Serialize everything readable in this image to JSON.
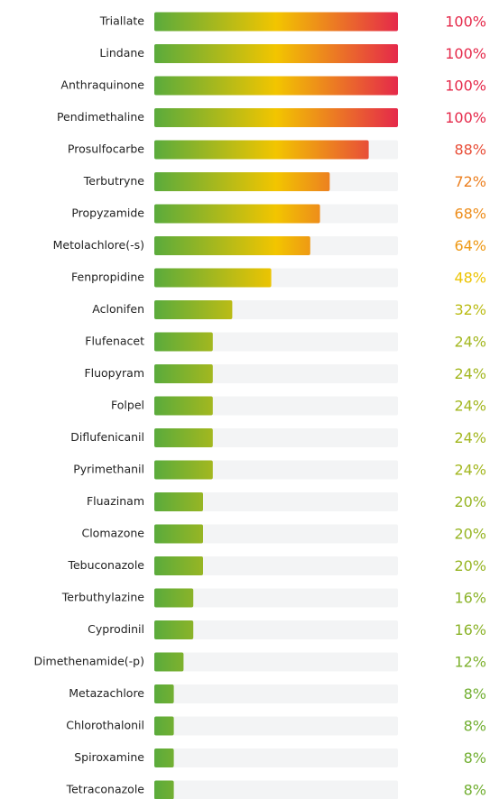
{
  "chart_data": {
    "type": "bar",
    "orientation": "horizontal",
    "categories": [
      "Triallate",
      "Lindane",
      "Anthraquinone",
      "Pendimethaline",
      "Prosulfocarbe",
      "Terbutryne",
      "Propyzamide",
      "Metolachlore(-s)",
      "Fenpropidine",
      "Aclonifen",
      "Flufenacet",
      "Fluopyram",
      "Folpel",
      "Diflufenicanil",
      "Pyrimethanil",
      "Fluazinam",
      "Clomazone",
      "Tebuconazole",
      "Terbuthylazine",
      "Cyprodinil",
      "Dimethenamide(-p)",
      "Metazachlore",
      "Chlorothalonil",
      "Spiroxamine",
      "Tetraconazole"
    ],
    "values": [
      100,
      100,
      100,
      100,
      88,
      72,
      68,
      64,
      48,
      32,
      24,
      24,
      24,
      24,
      24,
      20,
      20,
      20,
      16,
      16,
      12,
      8,
      8,
      8,
      8
    ],
    "value_labels": [
      "100%",
      "100%",
      "100%",
      "100%",
      "88%",
      "72%",
      "68%",
      "64%",
      "48%",
      "32%",
      "24%",
      "24%",
      "24%",
      "24%",
      "24%",
      "20%",
      "20%",
      "20%",
      "16%",
      "16%",
      "12%",
      "8%",
      "8%",
      "8%",
      "8%"
    ],
    "xlim": [
      0,
      100
    ],
    "gradient": [
      "#5aab3c",
      "#f2c500",
      "#e5294a"
    ],
    "track_color": "#f3f4f5"
  }
}
